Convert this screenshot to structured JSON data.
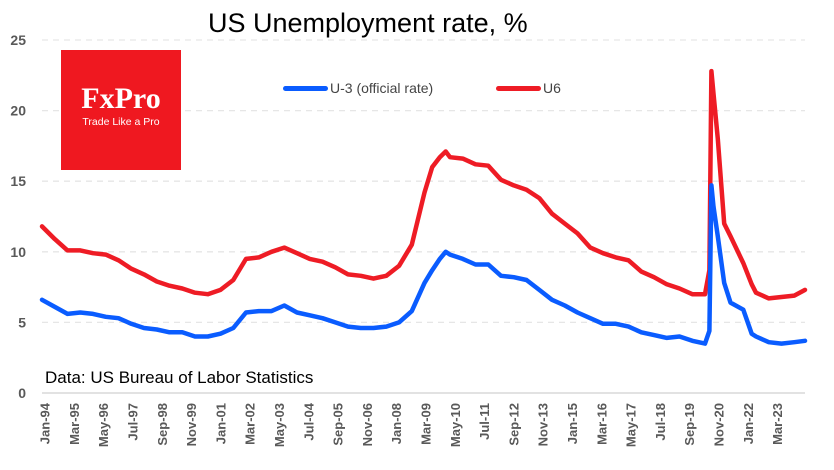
{
  "chart_data": {
    "type": "line",
    "title": "US Unemployment rate, %",
    "source_note": "Data: US Bureau of Labor Statistics",
    "xlabel": "",
    "ylabel": "",
    "ylim": [
      0,
      25
    ],
    "yticks": [
      "0",
      "5",
      "10",
      "15",
      "20",
      "25"
    ],
    "grid": true,
    "legend_position": "top-center",
    "x_tick_labels": [
      "Jan-94",
      "Mar-95",
      "May-96",
      "Jul-97",
      "Sep-98",
      "Nov-99",
      "Jan-01",
      "Mar-02",
      "May-03",
      "Jul-04",
      "Sep-05",
      "Nov-06",
      "Jan-08",
      "Mar-09",
      "May-10",
      "Jul-11",
      "Sep-12",
      "Nov-13",
      "Jan-15",
      "Mar-16",
      "May-17",
      "Jul-18",
      "Sep-19",
      "Nov-20",
      "Jan-22",
      "Mar-23"
    ],
    "x_start": 1994.0,
    "x_end": 2023.92,
    "series": [
      {
        "name": "U-3 (official rate)",
        "color": "#0a5cff",
        "x": [
          1994.0,
          1994.5,
          1995.0,
          1995.5,
          1996.0,
          1996.5,
          1997.0,
          1997.5,
          1998.0,
          1998.5,
          1999.0,
          1999.5,
          2000.0,
          2000.5,
          2001.0,
          2001.5,
          2002.0,
          2002.5,
          2003.0,
          2003.5,
          2004.0,
          2004.5,
          2005.0,
          2005.5,
          2006.0,
          2006.5,
          2007.0,
          2007.5,
          2008.0,
          2008.5,
          2009.0,
          2009.3,
          2009.6,
          2009.83,
          2010.0,
          2010.5,
          2011.0,
          2011.5,
          2012.0,
          2012.5,
          2013.0,
          2013.5,
          2014.0,
          2014.5,
          2015.0,
          2015.5,
          2016.0,
          2016.5,
          2017.0,
          2017.5,
          2018.0,
          2018.5,
          2019.0,
          2019.5,
          2020.0,
          2020.17,
          2020.25,
          2020.33,
          2020.5,
          2020.75,
          2021.0,
          2021.5,
          2021.83,
          2022.0,
          2022.5,
          2023.0,
          2023.5,
          2023.92
        ],
        "values": [
          6.6,
          6.1,
          5.6,
          5.7,
          5.6,
          5.4,
          5.3,
          4.9,
          4.6,
          4.5,
          4.3,
          4.3,
          4.0,
          4.0,
          4.2,
          4.6,
          5.7,
          5.8,
          5.8,
          6.2,
          5.7,
          5.5,
          5.3,
          5.0,
          4.7,
          4.6,
          4.6,
          4.7,
          5.0,
          5.8,
          7.8,
          8.7,
          9.5,
          10.0,
          9.8,
          9.5,
          9.1,
          9.1,
          8.3,
          8.2,
          8.0,
          7.3,
          6.6,
          6.2,
          5.7,
          5.3,
          4.9,
          4.9,
          4.7,
          4.3,
          4.1,
          3.9,
          4.0,
          3.7,
          3.5,
          4.4,
          14.7,
          13.2,
          11.1,
          7.8,
          6.4,
          5.9,
          4.2,
          4.0,
          3.6,
          3.5,
          3.6,
          3.7
        ]
      },
      {
        "name": "U6",
        "color": "#ee1c25",
        "x": [
          1994.0,
          1994.5,
          1995.0,
          1995.5,
          1996.0,
          1996.5,
          1997.0,
          1997.5,
          1998.0,
          1998.5,
          1999.0,
          1999.5,
          2000.0,
          2000.5,
          2001.0,
          2001.5,
          2002.0,
          2002.5,
          2003.0,
          2003.5,
          2004.0,
          2004.5,
          2005.0,
          2005.5,
          2006.0,
          2006.5,
          2007.0,
          2007.5,
          2008.0,
          2008.5,
          2009.0,
          2009.3,
          2009.6,
          2009.83,
          2010.0,
          2010.5,
          2011.0,
          2011.5,
          2012.0,
          2012.5,
          2013.0,
          2013.5,
          2014.0,
          2014.5,
          2015.0,
          2015.5,
          2016.0,
          2016.5,
          2017.0,
          2017.5,
          2018.0,
          2018.5,
          2019.0,
          2019.5,
          2020.0,
          2020.17,
          2020.25,
          2020.33,
          2020.5,
          2020.75,
          2021.0,
          2021.5,
          2021.83,
          2022.0,
          2022.5,
          2023.0,
          2023.5,
          2023.92
        ],
        "values": [
          11.8,
          10.9,
          10.1,
          10.1,
          9.9,
          9.8,
          9.4,
          8.8,
          8.4,
          7.9,
          7.6,
          7.4,
          7.1,
          7.0,
          7.3,
          8.0,
          9.5,
          9.6,
          10.0,
          10.3,
          9.9,
          9.5,
          9.3,
          8.9,
          8.4,
          8.3,
          8.1,
          8.3,
          9.0,
          10.5,
          14.2,
          16.0,
          16.7,
          17.1,
          16.7,
          16.6,
          16.2,
          16.1,
          15.1,
          14.7,
          14.4,
          13.8,
          12.7,
          12.0,
          11.3,
          10.3,
          9.9,
          9.6,
          9.4,
          8.6,
          8.2,
          7.7,
          7.4,
          7.0,
          7.0,
          8.7,
          22.8,
          21.2,
          18.0,
          12.0,
          11.1,
          9.2,
          7.7,
          7.1,
          6.7,
          6.8,
          6.9,
          7.3
        ]
      }
    ]
  },
  "logo": {
    "brand": "FxPro",
    "tagline": "Trade Like a Pro",
    "color": "#ef1820"
  }
}
